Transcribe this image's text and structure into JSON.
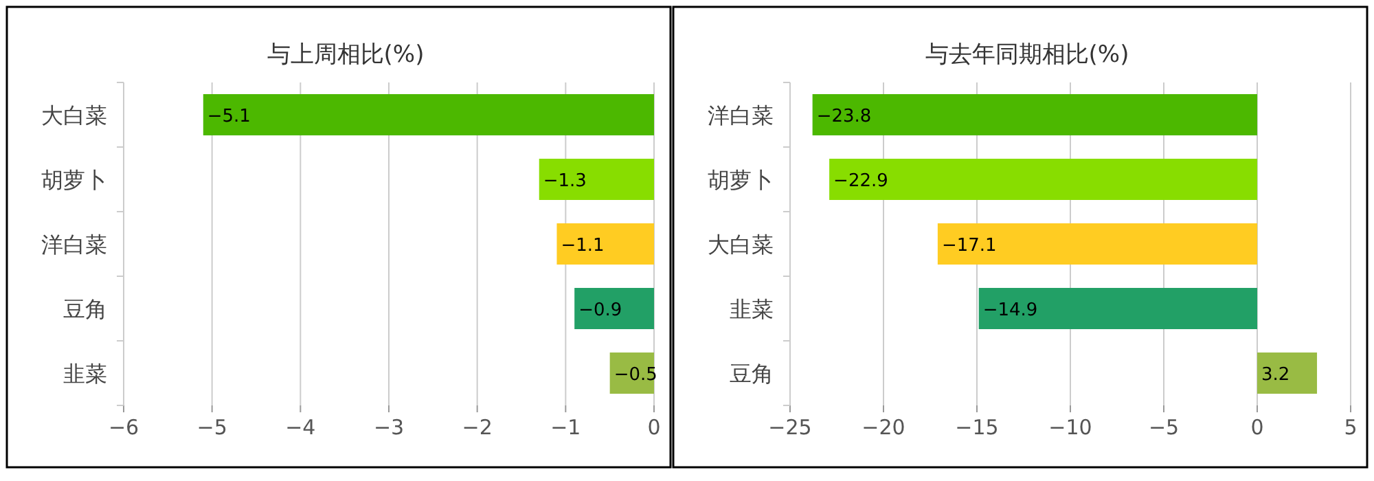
{
  "chart_data": [
    {
      "type": "bar",
      "orientation": "horizontal",
      "title": "与上周相比(%)",
      "categories": [
        "大白菜",
        "胡萝卜",
        "洋白菜",
        "豆角",
        "韭菜"
      ],
      "values": [
        -5.1,
        -1.3,
        -1.1,
        -0.9,
        -0.5
      ],
      "colors": [
        "#4cb800",
        "#88dd00",
        "#ffcc22",
        "#22a066",
        "#99bb44"
      ],
      "xlim": [
        -6,
        0
      ],
      "xticks": [
        -6,
        -5,
        -4,
        -3,
        -2,
        -1,
        0
      ],
      "grid": "x",
      "data_labels": true
    },
    {
      "type": "bar",
      "orientation": "horizontal",
      "title": "与去年同期相比(%)",
      "categories": [
        "洋白菜",
        "胡萝卜",
        "大白菜",
        "韭菜",
        "豆角"
      ],
      "values": [
        -23.8,
        -22.9,
        -17.1,
        -14.9,
        3.2
      ],
      "colors": [
        "#4cb800",
        "#88dd00",
        "#ffcc22",
        "#22a066",
        "#99bb44"
      ],
      "xlim": [
        -25,
        5
      ],
      "xticks": [
        -25,
        -20,
        -15,
        -10,
        -5,
        0,
        5
      ],
      "grid": "x",
      "data_labels": true
    }
  ]
}
